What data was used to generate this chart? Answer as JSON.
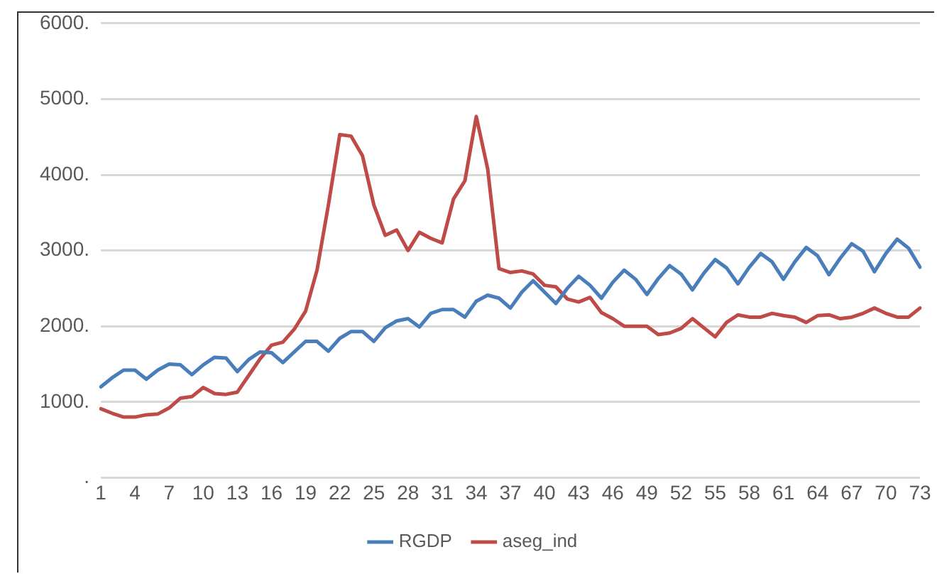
{
  "chart_data": {
    "type": "line",
    "categories": [
      "1",
      null,
      null,
      "4",
      null,
      null,
      "7",
      null,
      null,
      "10",
      null,
      null,
      "13",
      null,
      null,
      "16",
      null,
      null,
      "19",
      null,
      null,
      "22",
      null,
      null,
      "25",
      null,
      null,
      "28",
      null,
      null,
      "31",
      null,
      null,
      "34",
      null,
      null,
      "37",
      null,
      null,
      "40",
      null,
      null,
      "43",
      null,
      null,
      "46",
      null,
      null,
      "49",
      null,
      null,
      "52",
      null,
      null,
      "55",
      null,
      null,
      "58",
      null,
      null,
      "61",
      null,
      null,
      "64",
      null,
      null,
      "67",
      null,
      null,
      "70",
      null,
      null,
      "73"
    ],
    "series": [
      {
        "name": "RGDP",
        "color": "#4a7ebb",
        "values": [
          1200,
          1320,
          1420,
          1420,
          1300,
          1420,
          1500,
          1490,
          1360,
          1490,
          1590,
          1580,
          1400,
          1560,
          1660,
          1650,
          1520,
          1660,
          1800,
          1800,
          1670,
          1840,
          1930,
          1930,
          1800,
          1980,
          2070,
          2100,
          1990,
          2170,
          2220,
          2220,
          2120,
          2330,
          2410,
          2370,
          2240,
          2450,
          2600,
          2450,
          2300,
          2500,
          2660,
          2540,
          2370,
          2580,
          2740,
          2620,
          2420,
          2630,
          2800,
          2690,
          2480,
          2700,
          2880,
          2770,
          2560,
          2780,
          2960,
          2850,
          2620,
          2850,
          3040,
          2930,
          2680,
          2900,
          3090,
          2990,
          2720,
          2960,
          3150,
          3030,
          2780
        ]
      },
      {
        "name": "aseg_ind",
        "color": "#be4b48",
        "values": [
          910,
          850,
          800,
          800,
          830,
          840,
          920,
          1050,
          1070,
          1190,
          1110,
          1100,
          1130,
          1350,
          1570,
          1750,
          1790,
          1960,
          2200,
          2740,
          3600,
          4530,
          4510,
          4250,
          3600,
          3200,
          3270,
          3000,
          3240,
          3160,
          3100,
          3680,
          3920,
          4770,
          4080,
          2760,
          2710,
          2730,
          2690,
          2540,
          2520,
          2360,
          2320,
          2380,
          2180,
          2100,
          2000,
          2000,
          2000,
          1890,
          1910,
          1970,
          2100,
          1980,
          1860,
          2050,
          2150,
          2120,
          2120,
          2170,
          2140,
          2120,
          2050,
          2140,
          2150,
          2100,
          2120,
          2170,
          2240,
          2170,
          2120,
          2120,
          2240
        ]
      }
    ],
    "ylim": [
      0,
      6000
    ],
    "yticks": [
      {
        "value": 0,
        "label": "."
      },
      {
        "value": 1000,
        "label": "1000."
      },
      {
        "value": 2000,
        "label": "2000."
      },
      {
        "value": 3000,
        "label": "3000."
      },
      {
        "value": 4000,
        "label": "4000."
      },
      {
        "value": 5000,
        "label": "5000."
      },
      {
        "value": 6000,
        "label": "6000."
      }
    ],
    "grid": "y",
    "legend": "bottom",
    "marker": "none",
    "line_style": "solid"
  }
}
